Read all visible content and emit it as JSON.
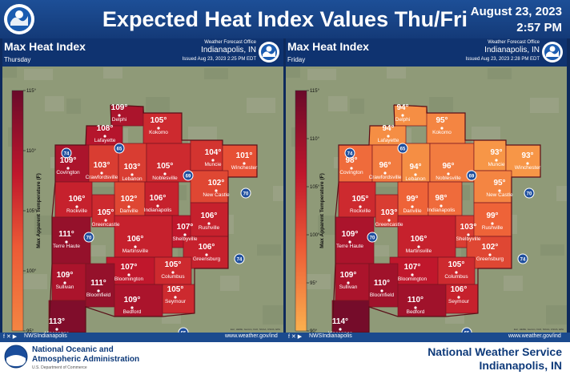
{
  "header": {
    "title": "Expected Heat Index Values Thu/Fri",
    "date": "August 23, 2023",
    "time": "2:57 PM",
    "logo_text": "NATIONAL WEATHER SERVICE"
  },
  "panels": [
    {
      "title": "Max Heat Index",
      "day": "Thursday",
      "office": "Weather Forecast Office",
      "office_location": "Indianapolis, IN",
      "issued": "Issued Aug 23, 2023 2:25 PM EDT",
      "legend": {
        "label": "Max Apparent Temperature (F)",
        "ticks": [
          "115°",
          "110°",
          "105°",
          "100°",
          "95°"
        ],
        "min": 95,
        "max": 115
      },
      "values": [
        {
          "city": "Delphi",
          "value": "109°",
          "num": 109
        },
        {
          "city": "Lafayette",
          "value": "108°",
          "num": 108
        },
        {
          "city": "Kokomo",
          "value": "105°",
          "num": 105
        },
        {
          "city": "Covington",
          "value": "109°",
          "num": 109
        },
        {
          "city": "Crawfordsville",
          "value": "103°",
          "num": 103
        },
        {
          "city": "Lebanon",
          "value": "103°",
          "num": 103
        },
        {
          "city": "Noblesville",
          "value": "105°",
          "num": 105
        },
        {
          "city": "Muncie",
          "value": "104°",
          "num": 104
        },
        {
          "city": "Winchester",
          "value": "101°",
          "num": 101
        },
        {
          "city": "New Castle",
          "value": "102°",
          "num": 102
        },
        {
          "city": "Rockville",
          "value": "106°",
          "num": 106
        },
        {
          "city": "Danville",
          "value": "102°",
          "num": 102
        },
        {
          "city": "Indianapolis",
          "value": "106°",
          "num": 106
        },
        {
          "city": "Greencastle",
          "value": "105°",
          "num": 105
        },
        {
          "city": "Shelbyville",
          "value": "107°",
          "num": 107
        },
        {
          "city": "Rushville",
          "value": "106°",
          "num": 106
        },
        {
          "city": "Terre Haute",
          "value": "111°",
          "num": 111
        },
        {
          "city": "Martinsville",
          "value": "106°",
          "num": 106
        },
        {
          "city": "Greensburg",
          "value": "106°",
          "num": 106
        },
        {
          "city": "Sullivan",
          "value": "109°",
          "num": 109
        },
        {
          "city": "Bloomington",
          "value": "107°",
          "num": 107
        },
        {
          "city": "Columbus",
          "value": "105°",
          "num": 105
        },
        {
          "city": "Bloomfield",
          "value": "111°",
          "num": 111
        },
        {
          "city": "Bedford",
          "value": "109°",
          "num": 109
        },
        {
          "city": "Seymour",
          "value": "105°",
          "num": 105
        },
        {
          "city": "Vincennes",
          "value": "113°",
          "num": 113
        }
      ],
      "credits": "Esri, HERE, Garmin, FAO, NOAA, USGS, EPA"
    },
    {
      "title": "Max Heat Index",
      "day": "Friday",
      "office": "Weather Forecast Office",
      "office_location": "Indianapolis, IN",
      "issued": "Issued Aug 23, 2023 2:28 PM EDT",
      "legend": {
        "label": "Max Apparent Temperature (F)",
        "ticks": [
          "115°",
          "110°",
          "105°",
          "100°",
          "95°",
          "90°"
        ],
        "min": 90,
        "max": 115
      },
      "values": [
        {
          "city": "Delphi",
          "value": "94°",
          "num": 94
        },
        {
          "city": "Lafayette",
          "value": "94°",
          "num": 94
        },
        {
          "city": "Kokomo",
          "value": "95°",
          "num": 95
        },
        {
          "city": "Covington",
          "value": "98°",
          "num": 98
        },
        {
          "city": "Crawfordsville",
          "value": "96°",
          "num": 96
        },
        {
          "city": "Lebanon",
          "value": "94°",
          "num": 94
        },
        {
          "city": "Noblesville",
          "value": "96°",
          "num": 96
        },
        {
          "city": "Muncie",
          "value": "93°",
          "num": 93
        },
        {
          "city": "Winchester",
          "value": "93°",
          "num": 93
        },
        {
          "city": "New Castle",
          "value": "95°",
          "num": 95
        },
        {
          "city": "Rockville",
          "value": "105°",
          "num": 105
        },
        {
          "city": "Danville",
          "value": "99°",
          "num": 99
        },
        {
          "city": "Indianapolis",
          "value": "98°",
          "num": 98
        },
        {
          "city": "Greencastle",
          "value": "103°",
          "num": 103
        },
        {
          "city": "Shelbyville",
          "value": "103°",
          "num": 103
        },
        {
          "city": "Rushville",
          "value": "99°",
          "num": 99
        },
        {
          "city": "Terre Haute",
          "value": "109°",
          "num": 109
        },
        {
          "city": "Martinsville",
          "value": "106°",
          "num": 106
        },
        {
          "city": "Greensburg",
          "value": "102°",
          "num": 102
        },
        {
          "city": "Sullivan",
          "value": "109°",
          "num": 109
        },
        {
          "city": "Bloomington",
          "value": "107°",
          "num": 107
        },
        {
          "city": "Columbus",
          "value": "105°",
          "num": 105
        },
        {
          "city": "Bloomfield",
          "value": "110°",
          "num": 110
        },
        {
          "city": "Bedford",
          "value": "110°",
          "num": 110
        },
        {
          "city": "Seymour",
          "value": "106°",
          "num": 106
        },
        {
          "city": "Vincennes",
          "value": "114°",
          "num": 114
        }
      ],
      "credits": "Esri, HERE, Garmin, FAO, NOAA, USGS, EPA"
    }
  ],
  "highways": [
    "74",
    "65",
    "69",
    "70",
    "70",
    "74",
    "65"
  ],
  "social": {
    "handle": "NWSIndianapolis",
    "site": "www.weather.gov/ind"
  },
  "footer": {
    "noaa_line1": "National Oceanic and",
    "noaa_line2": "Atmospheric Administration",
    "noaa_line3": "U.S. Department of Commerce",
    "nws_name": "National Weather Service",
    "nws_location": "Indianapolis, IN"
  },
  "colors": {
    "header_blue": "#1d4f97",
    "scale_low": "#fbb04e",
    "scale_mid": "#ec5a36",
    "scale_high": "#c0172c",
    "scale_top": "#6a0a2a"
  }
}
